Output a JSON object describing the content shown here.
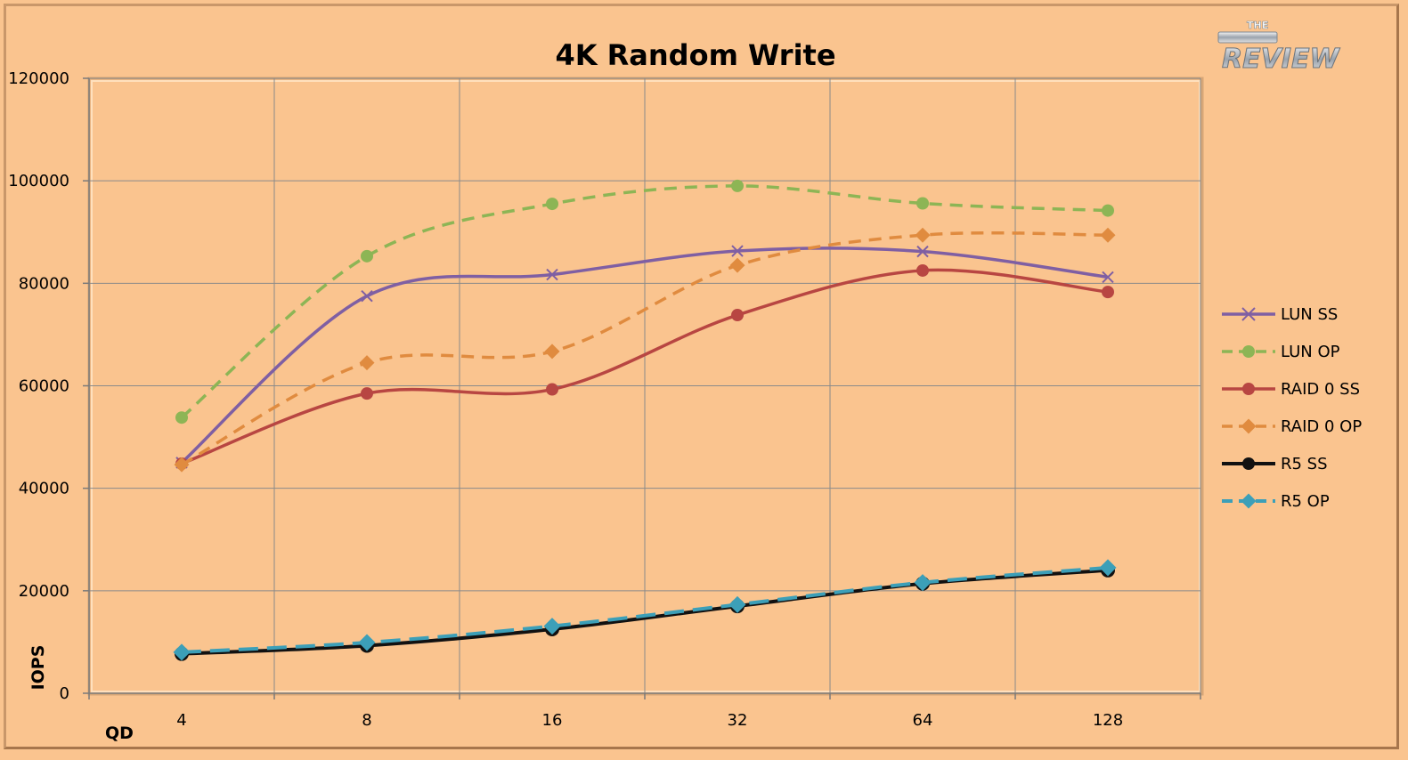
{
  "chart_data": {
    "type": "line",
    "title": "4K Random Write",
    "xlabel": "QD",
    "ylabel": "IOPS",
    "categories": [
      "4",
      "8",
      "16",
      "32",
      "64",
      "128"
    ],
    "ylim": [
      0,
      120000
    ],
    "yticks": [
      "0",
      "20000",
      "40000",
      "60000",
      "80000",
      "100000",
      "120000"
    ],
    "grid": true,
    "legend_position": "right",
    "series": [
      {
        "name": "LUN SS",
        "values": [
          45000,
          77500,
          81700,
          86300,
          86200,
          81200
        ],
        "color": "#7f5fa3",
        "dash": false,
        "marker": "x"
      },
      {
        "name": "LUN OP",
        "values": [
          53800,
          85300,
          95500,
          99000,
          95600,
          94200
        ],
        "color": "#8db555",
        "dash": true,
        "marker": "circle"
      },
      {
        "name": "RAID 0 SS",
        "values": [
          44800,
          58500,
          59300,
          73800,
          82500,
          78300
        ],
        "color": "#b84642",
        "dash": false,
        "marker": "circle"
      },
      {
        "name": "RAID 0 OP",
        "values": [
          44600,
          64500,
          66700,
          83500,
          89400,
          89400
        ],
        "color": "#e08b3f",
        "dash": true,
        "marker": "diamond"
      },
      {
        "name": "R5 SS",
        "values": [
          7700,
          9300,
          12500,
          17000,
          21400,
          24000
        ],
        "color": "#111111",
        "dash": false,
        "marker": "circle"
      },
      {
        "name": "R5 OP",
        "values": [
          8000,
          9900,
          13100,
          17300,
          21600,
          24500
        ],
        "color": "#3c9fb8",
        "dash": true,
        "marker": "diamond"
      }
    ]
  },
  "logo": {
    "top_text": "THE",
    "main_text": "REVIEW"
  }
}
